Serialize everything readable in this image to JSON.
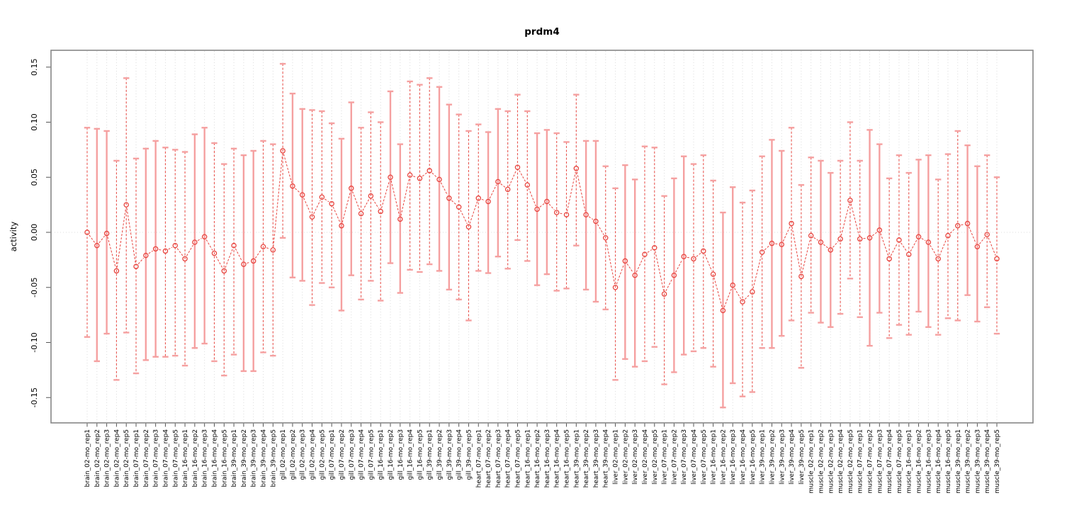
{
  "title": "prdm4",
  "chart_data": {
    "type": "scatter",
    "title": "prdm4",
    "xlabel": "",
    "ylabel": "activity",
    "ylim": [
      -0.173,
      0.165
    ],
    "grid": {
      "vertical_dotted": true,
      "horizontal_zero_line_dotted": true
    },
    "legend": "none",
    "error_bars": true,
    "point_style": "open-circle",
    "line_style": "dashed-segments-with-point-gaps",
    "colors": {
      "point": "#e8453f",
      "errorbar_solid": "#f5a0a0",
      "errorbar_dashed": "#e8453f",
      "grid": "#dcdcdc",
      "box": "#878787",
      "text": "#000000",
      "background": "#ffffff"
    },
    "yticks": [
      {
        "label": "0.15",
        "value": 0.15
      },
      {
        "label": "0.10",
        "value": 0.1
      },
      {
        "label": "0.05",
        "value": 0.05
      },
      {
        "label": "0.00",
        "value": 0.0
      },
      {
        "label": "-0.05",
        "value": -0.05
      },
      {
        "label": "-0.10",
        "value": -0.1
      },
      {
        "label": "-0.15",
        "value": -0.15
      }
    ],
    "points": [
      {
        "label": "brain_02-mo_rep1",
        "value": 0.0,
        "lo": -0.095,
        "hi": 0.095
      },
      {
        "label": "brain_02-mo_rep2",
        "value": -0.012,
        "lo": -0.117,
        "hi": 0.094
      },
      {
        "label": "brain_02-mo_rep3",
        "value": -0.001,
        "lo": -0.092,
        "hi": 0.092
      },
      {
        "label": "brain_02-mo_rep4",
        "value": -0.035,
        "lo": -0.134,
        "hi": 0.065
      },
      {
        "label": "brain_02-mo_rep5",
        "value": 0.025,
        "lo": -0.091,
        "hi": 0.14
      },
      {
        "label": "brain_07-mo_rep1",
        "value": -0.031,
        "lo": -0.128,
        "hi": 0.067
      },
      {
        "label": "brain_07-mo_rep2",
        "value": -0.021,
        "lo": -0.116,
        "hi": 0.076
      },
      {
        "label": "brain_07-mo_rep3",
        "value": -0.015,
        "lo": -0.113,
        "hi": 0.083
      },
      {
        "label": "brain_07-mo_rep4",
        "value": -0.017,
        "lo": -0.113,
        "hi": 0.077
      },
      {
        "label": "brain_07-mo_rep5",
        "value": -0.012,
        "lo": -0.112,
        "hi": 0.075
      },
      {
        "label": "brain_16-mo_rep1",
        "value": -0.024,
        "lo": -0.121,
        "hi": 0.073
      },
      {
        "label": "brain_16-mo_rep2",
        "value": -0.009,
        "lo": -0.105,
        "hi": 0.089
      },
      {
        "label": "brain_16-mo_rep3",
        "value": -0.004,
        "lo": -0.101,
        "hi": 0.095
      },
      {
        "label": "brain_16-mo_rep4",
        "value": -0.019,
        "lo": -0.117,
        "hi": 0.081
      },
      {
        "label": "brain_16-mo_rep5",
        "value": -0.035,
        "lo": -0.13,
        "hi": 0.062
      },
      {
        "label": "brain_39-mo_rep1",
        "value": -0.012,
        "lo": -0.111,
        "hi": 0.076
      },
      {
        "label": "brain_39-mo_rep2",
        "value": -0.029,
        "lo": -0.126,
        "hi": 0.07
      },
      {
        "label": "brain_39-mo_rep3",
        "value": -0.026,
        "lo": -0.126,
        "hi": 0.074
      },
      {
        "label": "brain_39-mo_rep4",
        "value": -0.013,
        "lo": -0.109,
        "hi": 0.083
      },
      {
        "label": "brain_39-mo_rep5",
        "value": -0.016,
        "lo": -0.112,
        "hi": 0.08
      },
      {
        "label": "gill_02-mo_rep1",
        "value": 0.074,
        "lo": -0.005,
        "hi": 0.153
      },
      {
        "label": "gill_02-mo_rep2",
        "value": 0.042,
        "lo": -0.041,
        "hi": 0.126
      },
      {
        "label": "gill_02-mo_rep3",
        "value": 0.034,
        "lo": -0.044,
        "hi": 0.112
      },
      {
        "label": "gill_02-mo_rep4",
        "value": 0.014,
        "lo": -0.066,
        "hi": 0.111
      },
      {
        "label": "gill_02-mo_rep5",
        "value": 0.032,
        "lo": -0.046,
        "hi": 0.11
      },
      {
        "label": "gill_07-mo_rep1",
        "value": 0.026,
        "lo": -0.05,
        "hi": 0.099
      },
      {
        "label": "gill_07-mo_rep2",
        "value": 0.006,
        "lo": -0.071,
        "hi": 0.085
      },
      {
        "label": "gill_07-mo_rep3",
        "value": 0.04,
        "lo": -0.039,
        "hi": 0.118
      },
      {
        "label": "gill_07-mo_rep4",
        "value": 0.017,
        "lo": -0.061,
        "hi": 0.095
      },
      {
        "label": "gill_07-mo_rep5",
        "value": 0.033,
        "lo": -0.044,
        "hi": 0.109
      },
      {
        "label": "gill_16-mo_rep1",
        "value": 0.019,
        "lo": -0.062,
        "hi": 0.1
      },
      {
        "label": "gill_16-mo_rep2",
        "value": 0.05,
        "lo": -0.028,
        "hi": 0.128
      },
      {
        "label": "gill_16-mo_rep3",
        "value": 0.012,
        "lo": -0.055,
        "hi": 0.08
      },
      {
        "label": "gill_16-mo_rep4",
        "value": 0.052,
        "lo": -0.034,
        "hi": 0.137
      },
      {
        "label": "gill_16-mo_rep5",
        "value": 0.049,
        "lo": -0.036,
        "hi": 0.134
      },
      {
        "label": "gill_39-mo_rep1",
        "value": 0.056,
        "lo": -0.029,
        "hi": 0.14
      },
      {
        "label": "gill_39-mo_rep2",
        "value": 0.048,
        "lo": -0.035,
        "hi": 0.132
      },
      {
        "label": "gill_39-mo_rep3",
        "value": 0.031,
        "lo": -0.052,
        "hi": 0.116
      },
      {
        "label": "gill_39-mo_rep4",
        "value": 0.023,
        "lo": -0.061,
        "hi": 0.107
      },
      {
        "label": "gill_39-mo_rep5",
        "value": 0.005,
        "lo": -0.08,
        "hi": 0.092
      },
      {
        "label": "heart_07-mo_rep1",
        "value": 0.031,
        "lo": -0.035,
        "hi": 0.098
      },
      {
        "label": "heart_07-mo_rep2",
        "value": 0.028,
        "lo": -0.037,
        "hi": 0.091
      },
      {
        "label": "heart_07-mo_rep3",
        "value": 0.046,
        "lo": -0.022,
        "hi": 0.112
      },
      {
        "label": "heart_07-mo_rep4",
        "value": 0.039,
        "lo": -0.033,
        "hi": 0.11
      },
      {
        "label": "heart_07-mo_rep5",
        "value": 0.059,
        "lo": -0.007,
        "hi": 0.125
      },
      {
        "label": "heart_16-mo_rep1",
        "value": 0.043,
        "lo": -0.026,
        "hi": 0.11
      },
      {
        "label": "heart_16-mo_rep2",
        "value": 0.021,
        "lo": -0.048,
        "hi": 0.09
      },
      {
        "label": "heart_16-mo_rep3",
        "value": 0.028,
        "lo": -0.038,
        "hi": 0.093
      },
      {
        "label": "heart_16-mo_rep4",
        "value": 0.018,
        "lo": -0.053,
        "hi": 0.09
      },
      {
        "label": "heart_16-mo_rep5",
        "value": 0.016,
        "lo": -0.051,
        "hi": 0.082
      },
      {
        "label": "heart_39-mo_rep1",
        "value": 0.058,
        "lo": -0.012,
        "hi": 0.125
      },
      {
        "label": "heart_39-mo_rep2",
        "value": 0.016,
        "lo": -0.052,
        "hi": 0.083
      },
      {
        "label": "heart_39-mo_rep3",
        "value": 0.01,
        "lo": -0.063,
        "hi": 0.083
      },
      {
        "label": "heart_39-mo_rep4",
        "value": -0.005,
        "lo": -0.07,
        "hi": 0.06
      },
      {
        "label": "liver_02-mo_rep1",
        "value": -0.05,
        "lo": -0.134,
        "hi": 0.04
      },
      {
        "label": "liver_02-mo_rep2",
        "value": -0.026,
        "lo": -0.115,
        "hi": 0.061
      },
      {
        "label": "liver_02-mo_rep3",
        "value": -0.039,
        "lo": -0.122,
        "hi": 0.048
      },
      {
        "label": "liver_02-mo_rep4",
        "value": -0.02,
        "lo": -0.117,
        "hi": 0.078
      },
      {
        "label": "liver_02-mo_rep5",
        "value": -0.014,
        "lo": -0.104,
        "hi": 0.077
      },
      {
        "label": "liver_07-mo_rep1",
        "value": -0.056,
        "lo": -0.138,
        "hi": 0.033
      },
      {
        "label": "liver_07-mo_rep2",
        "value": -0.039,
        "lo": -0.127,
        "hi": 0.049
      },
      {
        "label": "liver_07-mo_rep3",
        "value": -0.022,
        "lo": -0.111,
        "hi": 0.069
      },
      {
        "label": "liver_07-mo_rep4",
        "value": -0.024,
        "lo": -0.108,
        "hi": 0.062
      },
      {
        "label": "liver_07-mo_rep5",
        "value": -0.017,
        "lo": -0.105,
        "hi": 0.07
      },
      {
        "label": "liver_16-mo_rep1",
        "value": -0.038,
        "lo": -0.122,
        "hi": 0.047
      },
      {
        "label": "liver_16-mo_rep2",
        "value": -0.071,
        "lo": -0.159,
        "hi": 0.018
      },
      {
        "label": "liver_16-mo_rep3",
        "value": -0.048,
        "lo": -0.137,
        "hi": 0.041
      },
      {
        "label": "liver_16-mo_rep4",
        "value": -0.063,
        "lo": -0.149,
        "hi": 0.027
      },
      {
        "label": "liver_16-mo_rep5",
        "value": -0.054,
        "lo": -0.145,
        "hi": 0.038
      },
      {
        "label": "liver_39-mo_rep1",
        "value": -0.018,
        "lo": -0.105,
        "hi": 0.069
      },
      {
        "label": "liver_39-mo_rep2",
        "value": -0.01,
        "lo": -0.105,
        "hi": 0.084
      },
      {
        "label": "liver_39-mo_rep3",
        "value": -0.011,
        "lo": -0.094,
        "hi": 0.074
      },
      {
        "label": "liver_39-mo_rep4",
        "value": 0.008,
        "lo": -0.08,
        "hi": 0.095
      },
      {
        "label": "liver_39-mo_rep5",
        "value": -0.04,
        "lo": -0.123,
        "hi": 0.043
      },
      {
        "label": "muscle_02-mo_rep1",
        "value": -0.003,
        "lo": -0.073,
        "hi": 0.068
      },
      {
        "label": "muscle_02-mo_rep2",
        "value": -0.009,
        "lo": -0.082,
        "hi": 0.065
      },
      {
        "label": "muscle_02-mo_rep3",
        "value": -0.016,
        "lo": -0.086,
        "hi": 0.054
      },
      {
        "label": "muscle_02-mo_rep4",
        "value": -0.006,
        "lo": -0.074,
        "hi": 0.065
      },
      {
        "label": "muscle_02-mo_rep5",
        "value": 0.029,
        "lo": -0.042,
        "hi": 0.1
      },
      {
        "label": "muscle_07-mo_rep1",
        "value": -0.006,
        "lo": -0.077,
        "hi": 0.065
      },
      {
        "label": "muscle_07-mo_rep2",
        "value": -0.005,
        "lo": -0.103,
        "hi": 0.093
      },
      {
        "label": "muscle_07-mo_rep3",
        "value": 0.002,
        "lo": -0.073,
        "hi": 0.08
      },
      {
        "label": "muscle_07-mo_rep4",
        "value": -0.024,
        "lo": -0.096,
        "hi": 0.049
      },
      {
        "label": "muscle_07-mo_rep5",
        "value": -0.007,
        "lo": -0.084,
        "hi": 0.07
      },
      {
        "label": "muscle_16-mo_rep1",
        "value": -0.02,
        "lo": -0.093,
        "hi": 0.054
      },
      {
        "label": "muscle_16-mo_rep2",
        "value": -0.004,
        "lo": -0.072,
        "hi": 0.066
      },
      {
        "label": "muscle_16-mo_rep3",
        "value": -0.009,
        "lo": -0.086,
        "hi": 0.07
      },
      {
        "label": "muscle_16-mo_rep4",
        "value": -0.024,
        "lo": -0.093,
        "hi": 0.048
      },
      {
        "label": "muscle_16-mo_rep5",
        "value": -0.003,
        "lo": -0.078,
        "hi": 0.071
      },
      {
        "label": "muscle_39-mo_rep1",
        "value": 0.006,
        "lo": -0.08,
        "hi": 0.092
      },
      {
        "label": "muscle_39-mo_rep2",
        "value": 0.008,
        "lo": -0.057,
        "hi": 0.079
      },
      {
        "label": "muscle_39-mo_rep3",
        "value": -0.013,
        "lo": -0.081,
        "hi": 0.06
      },
      {
        "label": "muscle_39-mo_rep4",
        "value": -0.002,
        "lo": -0.068,
        "hi": 0.07
      },
      {
        "label": "muscle_39-mo_rep5",
        "value": -0.024,
        "lo": -0.092,
        "hi": 0.05
      }
    ]
  }
}
